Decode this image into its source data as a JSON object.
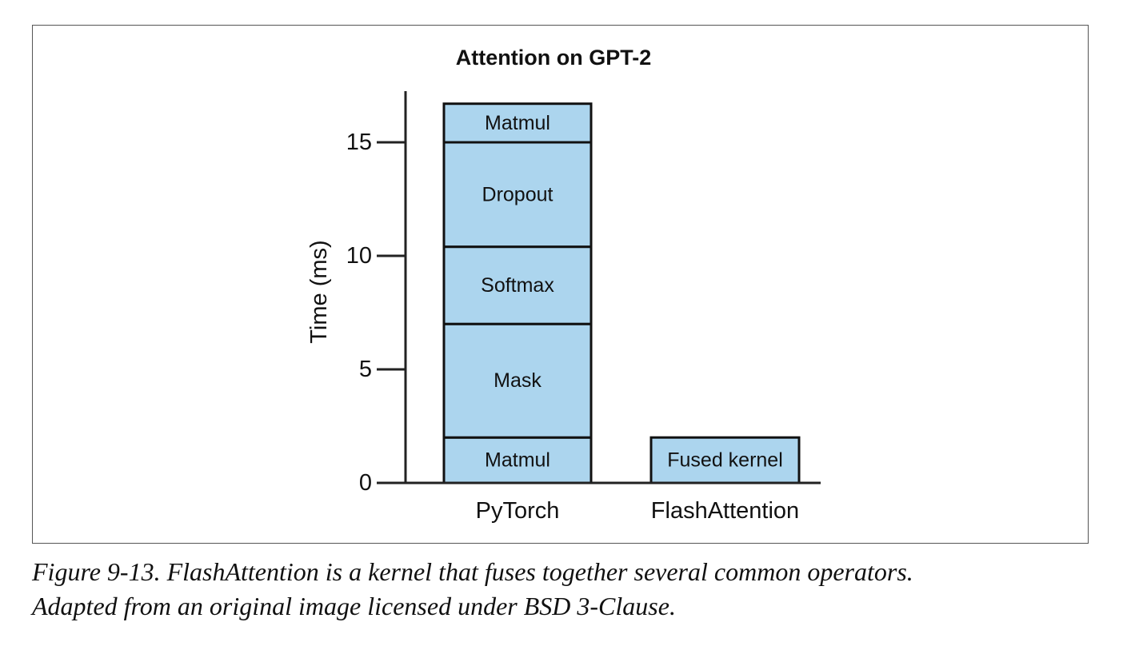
{
  "chart_data": {
    "type": "bar",
    "stacked": true,
    "title": "Attention on GPT-2",
    "xlabel": "",
    "ylabel": "Time (ms)",
    "ylim": [
      0,
      17
    ],
    "yticks": [
      0,
      5,
      10,
      15
    ],
    "categories": [
      "PyTorch",
      "FlashAttention"
    ],
    "bars": [
      {
        "category": "PyTorch",
        "segments": [
          {
            "label": "Matmul",
            "value": 2
          },
          {
            "label": "Mask",
            "value": 5
          },
          {
            "label": "Softmax",
            "value": 3.4
          },
          {
            "label": "Dropout",
            "value": 4.6
          },
          {
            "label": "Matmul",
            "value": 1.7
          }
        ]
      },
      {
        "category": "FlashAttention",
        "segments": [
          {
            "label": "Fused kernel",
            "value": 2
          }
        ]
      }
    ],
    "colors": {
      "bar_fill": "#acd5ee",
      "bar_stroke": "#111111",
      "axis": "#222222",
      "text": "#111111"
    }
  },
  "caption": {
    "line1": "Figure 9-13. FlashAttention is a kernel that fuses together several common operators.",
    "line2": "Adapted from an original image licensed under BSD 3-Clause."
  }
}
